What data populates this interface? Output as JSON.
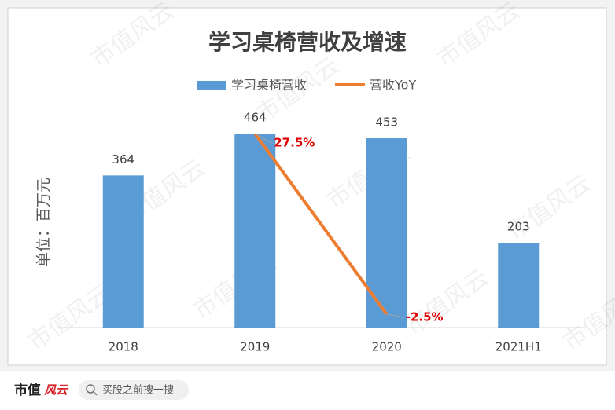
{
  "chart_data": {
    "type": "bar",
    "title": "学习桌椅营收及增速",
    "y_label": "单位：百万元",
    "categories": [
      "2018",
      "2019",
      "2020",
      "2021H1"
    ],
    "ylim": [
      0,
      500
    ],
    "y2lim": [
      -4.7,
      30
    ],
    "legend": "top",
    "series": [
      {
        "name": "学习桌椅营收",
        "type": "bar",
        "color": "#5b9bd5",
        "values": [
          364,
          464,
          453,
          203
        ]
      },
      {
        "name": "营收YoY",
        "type": "line",
        "axis": "y2",
        "color": "#ed7d31",
        "values": [
          null,
          27.5,
          -2.5,
          null
        ],
        "value_labels": [
          null,
          "27.5%",
          "-2.5%",
          null
        ]
      }
    ]
  },
  "watermark": "市值风云",
  "footer": {
    "brand": "市值",
    "brand_accent": "风云",
    "search": "买股之前搜一搜"
  }
}
